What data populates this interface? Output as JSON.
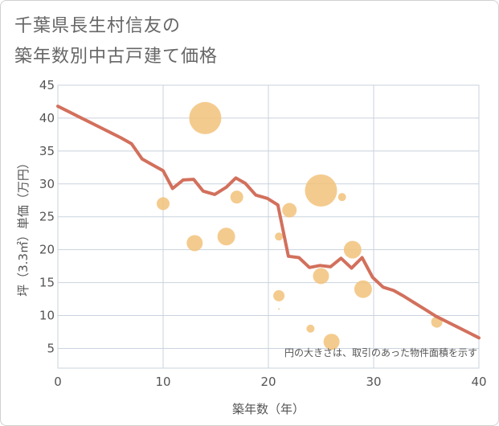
{
  "title_line1": "千葉県長生村信友の",
  "title_line2": "築年数別中古戸建て価格",
  "chart_data": {
    "type": "line+bubble",
    "xlabel": "築年数（年）",
    "ylabel": "坪（3.3㎡）単価（万円）",
    "xlim": [
      0,
      40
    ],
    "ylim": [
      2,
      45
    ],
    "xticks": [
      0,
      10,
      20,
      30,
      40
    ],
    "yticks": [
      5,
      10,
      15,
      20,
      25,
      30,
      35,
      40,
      45
    ],
    "grid": true,
    "note": "円の大きさは、取引のあった物件面積を示す",
    "line": {
      "name": "trend",
      "color": "#d2705c",
      "points": [
        [
          0,
          41.8
        ],
        [
          1,
          41.0
        ],
        [
          2,
          40.2
        ],
        [
          3,
          39.4
        ],
        [
          4,
          38.6
        ],
        [
          5,
          37.8
        ],
        [
          6,
          37.0
        ],
        [
          7,
          36.1
        ],
        [
          8,
          33.8
        ],
        [
          9,
          32.9
        ],
        [
          10,
          32.0
        ],
        [
          10.9,
          29.3
        ],
        [
          11.9,
          30.6
        ],
        [
          12.9,
          30.7
        ],
        [
          13.8,
          28.9
        ],
        [
          14.9,
          28.4
        ],
        [
          16,
          29.5
        ],
        [
          16.9,
          30.9
        ],
        [
          17.8,
          30.1
        ],
        [
          18.8,
          28.3
        ],
        [
          19.9,
          27.8
        ],
        [
          20.9,
          26.8
        ],
        [
          21.9,
          19.0
        ],
        [
          22.9,
          18.8
        ],
        [
          23.9,
          17.3
        ],
        [
          24.9,
          17.6
        ],
        [
          25.9,
          17.4
        ],
        [
          26.9,
          18.7
        ],
        [
          27.9,
          17.2
        ],
        [
          28.9,
          18.8
        ],
        [
          29.9,
          15.8
        ],
        [
          30.9,
          14.3
        ],
        [
          31.9,
          13.8
        ],
        [
          32.9,
          12.9
        ],
        [
          33.9,
          11.9
        ],
        [
          34.9,
          10.9
        ],
        [
          35.9,
          9.9
        ],
        [
          36.9,
          9.1
        ],
        [
          37.9,
          8.3
        ],
        [
          38.9,
          7.5
        ],
        [
          40,
          6.6
        ]
      ]
    },
    "bubbles": {
      "color": "#f2c27a",
      "points": [
        {
          "x": 14,
          "y": 40,
          "size": 20
        },
        {
          "x": 25,
          "y": 29,
          "size": 20
        },
        {
          "x": 10,
          "y": 27,
          "size": 8
        },
        {
          "x": 17,
          "y": 28,
          "size": 8
        },
        {
          "x": 27,
          "y": 28,
          "size": 5
        },
        {
          "x": 22,
          "y": 26,
          "size": 9
        },
        {
          "x": 16,
          "y": 22,
          "size": 11
        },
        {
          "x": 13,
          "y": 21,
          "size": 10
        },
        {
          "x": 21,
          "y": 22,
          "size": 5
        },
        {
          "x": 28,
          "y": 20,
          "size": 11
        },
        {
          "x": 25,
          "y": 16,
          "size": 10
        },
        {
          "x": 29,
          "y": 14,
          "size": 11
        },
        {
          "x": 21,
          "y": 13,
          "size": 7
        },
        {
          "x": 21,
          "y": 11,
          "size": 1
        },
        {
          "x": 24,
          "y": 8,
          "size": 5
        },
        {
          "x": 36,
          "y": 9,
          "size": 7
        },
        {
          "x": 26,
          "y": 6,
          "size": 10
        }
      ]
    }
  }
}
